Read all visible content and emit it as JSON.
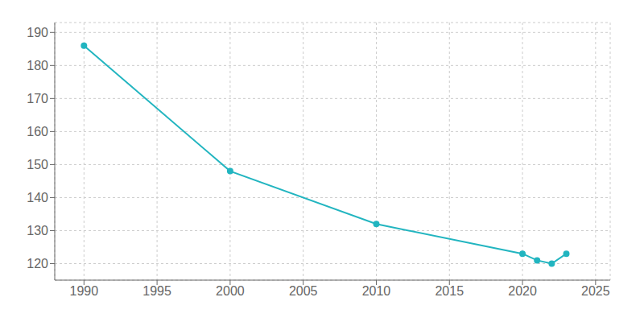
{
  "chart_data": {
    "type": "line",
    "x": [
      1990,
      2000,
      2010,
      2020,
      2021,
      2022,
      2023
    ],
    "values": [
      186,
      148,
      132,
      123,
      121,
      120,
      123
    ],
    "color": "#22b5c0",
    "marker": "circle",
    "xlim": [
      1988,
      2026
    ],
    "ylim": [
      115,
      193
    ],
    "xticks": [
      1990,
      1995,
      2000,
      2005,
      2010,
      2015,
      2020,
      2025
    ],
    "yticks": [
      120,
      130,
      140,
      150,
      160,
      170,
      180,
      190
    ],
    "grid": true
  }
}
